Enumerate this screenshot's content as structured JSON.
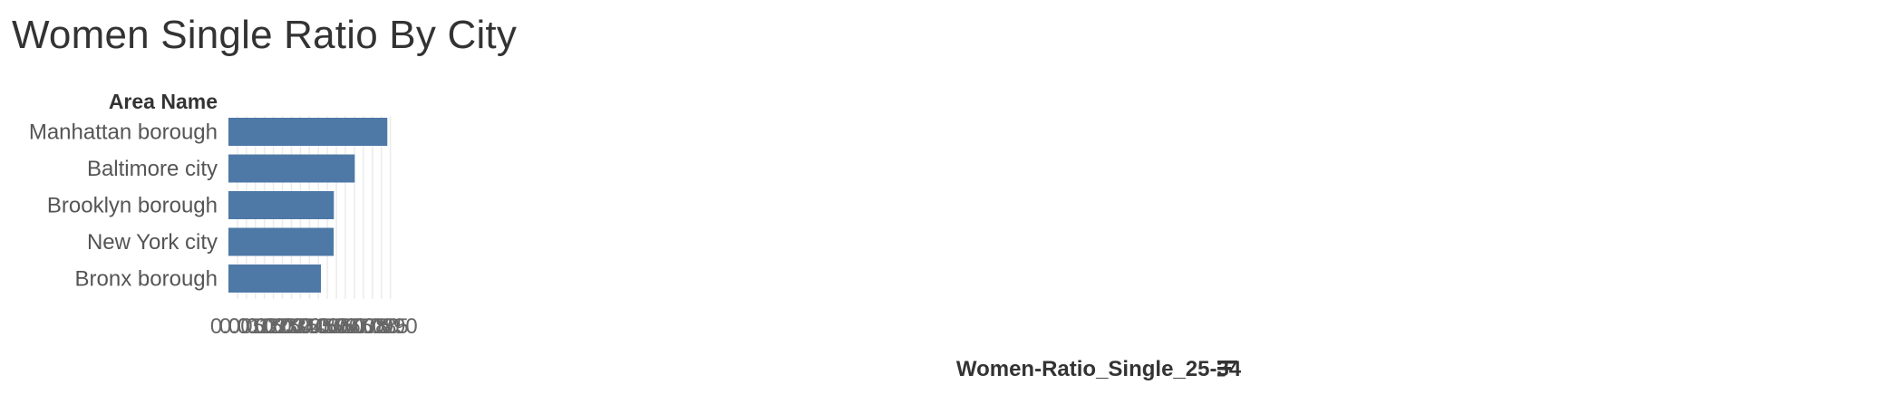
{
  "page": {
    "title": "Women Single Ratio By City"
  },
  "chart_data": {
    "type": "bar",
    "orientation": "horizontal",
    "title": "Women Single Ratio By City",
    "category_header": "Area Name",
    "xlabel": "Women-Ratio_Single_25-34",
    "ylabel": "Area Name",
    "categories": [
      "Manhattan borough",
      "Baltimore city",
      "Brooklyn borough",
      "New York city",
      "Bronx borough"
    ],
    "values": [
      0.0883,
      0.0702,
      0.0586,
      0.0585,
      0.0514
    ],
    "xlim": [
      0,
      0.0927
    ],
    "ticks": [
      "0.005",
      "0.010",
      "0.015",
      "0.020",
      "0.025",
      "0.030",
      "0.035",
      "0.040",
      "0.045",
      "0.050",
      "0.055",
      "0.060",
      "0.065",
      "0.070",
      "0.075",
      "0.080",
      "0.085",
      "0.090"
    ],
    "tick_values": [
      0.005,
      0.01,
      0.015,
      0.02,
      0.025,
      0.03,
      0.035,
      0.04,
      0.045,
      0.05,
      0.055,
      0.06,
      0.065,
      0.07,
      0.075,
      0.08,
      0.085,
      0.09
    ],
    "grid": true,
    "bar_color": "#4e79a7",
    "sort_icon": "sort-descending-icon"
  }
}
